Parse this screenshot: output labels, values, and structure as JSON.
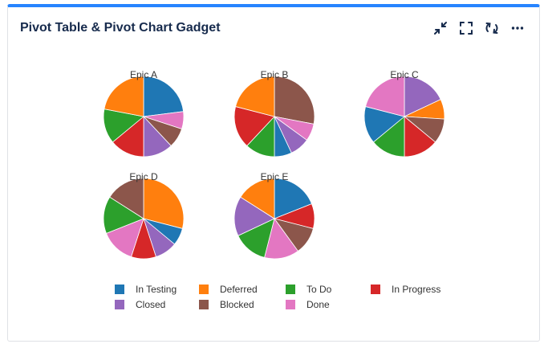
{
  "gadget": {
    "title": "Pivot Table & Pivot Chart Gadget",
    "actions": [
      {
        "name": "minimize-icon",
        "label": "Minimize"
      },
      {
        "name": "fullscreen-icon",
        "label": "Full screen"
      },
      {
        "name": "refresh-icon",
        "label": "Refresh"
      },
      {
        "name": "more-icon",
        "label": "More"
      }
    ]
  },
  "chart_data": {
    "type": "pie",
    "legend_placement": "bottom",
    "series": [
      {
        "name": "In Testing",
        "color": "#1f77b4"
      },
      {
        "name": "Deferred",
        "color": "#ff7f0e"
      },
      {
        "name": "To Do",
        "color": "#2ca02c"
      },
      {
        "name": "In Progress",
        "color": "#d62728"
      },
      {
        "name": "Closed",
        "color": "#9467bd"
      },
      {
        "name": "Blocked",
        "color": "#8c564b"
      },
      {
        "name": "Done",
        "color": "#e377c2"
      }
    ],
    "pies": [
      {
        "title": "Epic A",
        "slices": [
          {
            "status": "In Testing",
            "value": 23
          },
          {
            "status": "Done",
            "value": 7
          },
          {
            "status": "Blocked",
            "value": 8
          },
          {
            "status": "Closed",
            "value": 12
          },
          {
            "status": "In Progress",
            "value": 14
          },
          {
            "status": "To Do",
            "value": 14
          },
          {
            "status": "Deferred",
            "value": 22
          }
        ]
      },
      {
        "title": "Epic B",
        "slices": [
          {
            "status": "Blocked",
            "value": 28
          },
          {
            "status": "Done",
            "value": 7
          },
          {
            "status": "Closed",
            "value": 8
          },
          {
            "status": "In Testing",
            "value": 7
          },
          {
            "status": "To Do",
            "value": 12
          },
          {
            "status": "In Progress",
            "value": 17
          },
          {
            "status": "Deferred",
            "value": 21
          }
        ]
      },
      {
        "title": "Epic C",
        "slices": [
          {
            "status": "Closed",
            "value": 18
          },
          {
            "status": "Deferred",
            "value": 8
          },
          {
            "status": "Blocked",
            "value": 10
          },
          {
            "status": "In Progress",
            "value": 14
          },
          {
            "status": "To Do",
            "value": 14
          },
          {
            "status": "In Testing",
            "value": 15
          },
          {
            "status": "Done",
            "value": 21
          }
        ]
      },
      {
        "title": "Epic D",
        "slices": [
          {
            "status": "Deferred",
            "value": 29
          },
          {
            "status": "In Testing",
            "value": 7
          },
          {
            "status": "Closed",
            "value": 9
          },
          {
            "status": "In Progress",
            "value": 10
          },
          {
            "status": "Done",
            "value": 14
          },
          {
            "status": "To Do",
            "value": 15
          },
          {
            "status": "Blocked",
            "value": 16
          }
        ]
      },
      {
        "title": "Epic E",
        "slices": [
          {
            "status": "In Testing",
            "value": 19
          },
          {
            "status": "In Progress",
            "value": 10
          },
          {
            "status": "Blocked",
            "value": 11
          },
          {
            "status": "Done",
            "value": 14
          },
          {
            "status": "To Do",
            "value": 14
          },
          {
            "status": "Closed",
            "value": 16
          },
          {
            "status": "Deferred",
            "value": 16
          }
        ]
      }
    ]
  }
}
